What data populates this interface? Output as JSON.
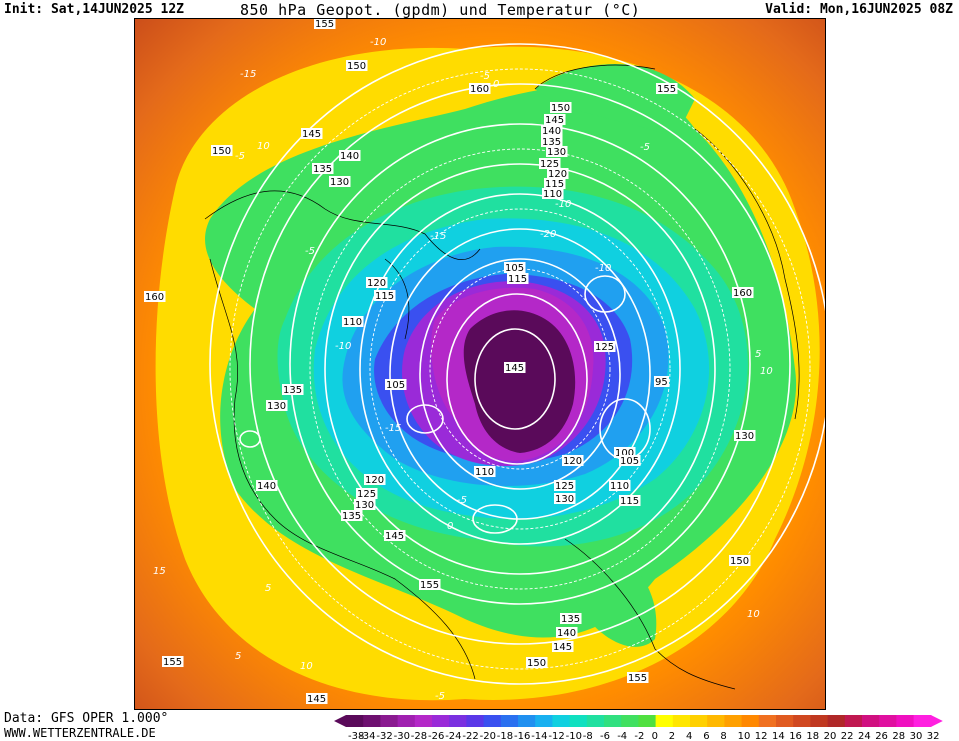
{
  "header": {
    "init": "Init: Sat,14JUN2025 12Z",
    "title": "850 hPa Geopot. (gpdm) und Temperatur (°C)",
    "valid": "Valid: Mon,16JUN2025 08Z"
  },
  "footer": {
    "data_source": "Data: GFS OPER 1.000°",
    "website": "WWW.WETTERZENTRALE.DE"
  },
  "legend": {
    "ticks": [
      "-38",
      "-34",
      "-32",
      "-30",
      "-28",
      "-26",
      "-24",
      "-22",
      "-20",
      "-18",
      "-16",
      "-14",
      "-12",
      "-10",
      "-8",
      "-6",
      "-4",
      "-2",
      "0",
      "2",
      "4",
      "6",
      "8",
      "10",
      "12",
      "14",
      "16",
      "18",
      "20",
      "22",
      "24",
      "26",
      "28",
      "30",
      "32"
    ],
    "colors": [
      "#5a0a5a",
      "#6e1070",
      "#8a1a90",
      "#a020b0",
      "#b428c8",
      "#9a2ad8",
      "#7a30e0",
      "#5a38e8",
      "#3a50f0",
      "#2a70f0",
      "#2090f0",
      "#18b0f0",
      "#10d0e0",
      "#10e0c0",
      "#20e0a0",
      "#30e080",
      "#40e060",
      "#50e040",
      "#ffff00",
      "#ffe600",
      "#ffd000",
      "#ffb800",
      "#ffa000",
      "#ff8800",
      "#f07020",
      "#e05a20",
      "#d04820",
      "#c03820",
      "#b02828",
      "#c01850",
      "#d01080",
      "#e010a0",
      "#f010c0",
      "#ff20e0"
    ]
  },
  "map": {
    "height_labels": [
      {
        "text": "155"
      },
      {
        "text": "150"
      },
      {
        "text": "160"
      },
      {
        "text": "155"
      },
      {
        "text": "150"
      },
      {
        "text": "145"
      },
      {
        "text": "140"
      },
      {
        "text": "135"
      },
      {
        "text": "130"
      },
      {
        "text": "125"
      },
      {
        "text": "120"
      },
      {
        "text": "115"
      },
      {
        "text": "110"
      },
      {
        "text": "145"
      },
      {
        "text": "150"
      },
      {
        "text": "140"
      },
      {
        "text": "135"
      },
      {
        "text": "130"
      },
      {
        "text": "160"
      },
      {
        "text": "120"
      },
      {
        "text": "115"
      },
      {
        "text": "110"
      },
      {
        "text": "105"
      },
      {
        "text": "135"
      },
      {
        "text": "130"
      },
      {
        "text": "140"
      },
      {
        "text": "120"
      },
      {
        "text": "125"
      },
      {
        "text": "130"
      },
      {
        "text": "135"
      },
      {
        "text": "145"
      },
      {
        "text": "155"
      },
      {
        "text": "160"
      },
      {
        "text": "95"
      },
      {
        "text": "130"
      },
      {
        "text": "100"
      },
      {
        "text": "105"
      },
      {
        "text": "110"
      },
      {
        "text": "115"
      },
      {
        "text": "120"
      },
      {
        "text": "125"
      },
      {
        "text": "130"
      },
      {
        "text": "150"
      },
      {
        "text": "135"
      },
      {
        "text": "140"
      },
      {
        "text": "145"
      },
      {
        "text": "150"
      },
      {
        "text": "155"
      },
      {
        "text": "155"
      },
      {
        "text": "145"
      },
      {
        "text": "110"
      },
      {
        "text": "105"
      },
      {
        "text": "115"
      },
      {
        "text": "125"
      },
      {
        "text": "145"
      }
    ],
    "temp_labels": [
      {
        "text": "-10"
      },
      {
        "text": "-15"
      },
      {
        "text": "-5"
      },
      {
        "text": "0"
      },
      {
        "text": "10"
      },
      {
        "text": "-5"
      },
      {
        "text": "-5"
      },
      {
        "text": "-10"
      },
      {
        "text": "-15"
      },
      {
        "text": "-20"
      },
      {
        "text": "-10"
      },
      {
        "text": "-5"
      },
      {
        "text": "5"
      },
      {
        "text": "10"
      },
      {
        "text": "-10"
      },
      {
        "text": "-15"
      },
      {
        "text": "-5"
      },
      {
        "text": "0"
      },
      {
        "text": "15"
      },
      {
        "text": "5"
      },
      {
        "text": "10"
      },
      {
        "text": "5"
      },
      {
        "text": "10"
      },
      {
        "text": "-5"
      }
    ]
  }
}
